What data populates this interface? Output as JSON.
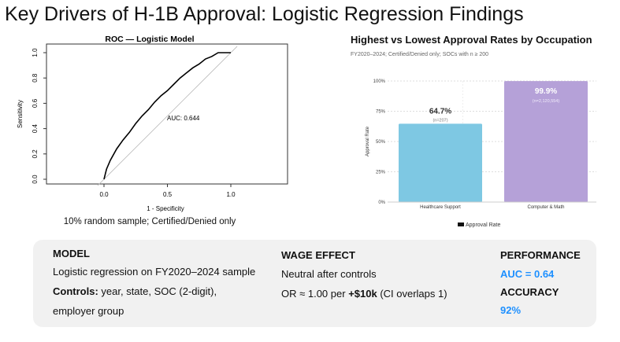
{
  "slide": {
    "title": "Key Drivers of H-1B Approval: Logistic Regression Findings"
  },
  "chart_data": [
    {
      "type": "line",
      "title": "ROC — Logistic Model",
      "xlabel": "1 - Specificity",
      "ylabel": "Sensitivity",
      "xlim": [
        -0.4,
        1.45
      ],
      "ylim": [
        0,
        1
      ],
      "xticks": [
        "0.0",
        "0.5",
        "1.0"
      ],
      "yticks": [
        "0.0",
        "0.2",
        "0.4",
        "0.6",
        "0.8",
        "1.0"
      ],
      "annotation": "AUC: 0.644",
      "caption": "10% random sample; Certified/Denied only",
      "series": [
        {
          "x": [
            0,
            0.02,
            0.05,
            0.1,
            0.15,
            0.2,
            0.25,
            0.3,
            0.35,
            0.4,
            0.45,
            0.5,
            0.55,
            0.6,
            0.65,
            0.7,
            0.75,
            0.8,
            0.85,
            0.9,
            1.0
          ],
          "y": [
            0,
            0.08,
            0.15,
            0.24,
            0.31,
            0.37,
            0.44,
            0.5,
            0.55,
            0.61,
            0.66,
            0.7,
            0.75,
            0.8,
            0.84,
            0.88,
            0.91,
            0.95,
            0.97,
            1.0,
            1.0
          ]
        }
      ],
      "reference_line": "diagonal",
      "colors": {
        "curve": "#000000",
        "reference": "#bbbbbb"
      }
    },
    {
      "type": "bar",
      "title": "Highest vs Lowest Approval Rates by Occupation",
      "subtitle": "FY2020–2024; Certified/Denied only; SOCs with n ≥ 200",
      "categories": [
        "Healthcare Support",
        "Computer & Math"
      ],
      "values": [
        64.7,
        99.9
      ],
      "data_labels": [
        "64.7%",
        "99.9%"
      ],
      "n_labels": [
        "(n=207)",
        "(n=2,120,554)"
      ],
      "colors": [
        "#7ec8e3",
        "#b5a1d8"
      ],
      "ylabel": "Approval Rate",
      "ylim": [
        0,
        100
      ],
      "yticks": [
        "0%",
        "25%",
        "50%",
        "75%",
        "100%"
      ],
      "legend": "Approval Rate",
      "legend_position": "bottom",
      "grid": true
    }
  ],
  "summary": {
    "model": {
      "heading": "MODEL",
      "line1": "Logistic regression on FY2020–2024 sample",
      "controls_label": "Controls:",
      "controls": " year, state, SOC (2-digit),",
      "line3": "employer group"
    },
    "wage": {
      "heading": "WAGE EFFECT",
      "line1": "Neutral after controls",
      "or_pre": "OR ≈ 1.00 per ",
      "or_bold": "+$10k",
      "or_post": " (CI overlaps  1)"
    },
    "performance": {
      "heading": "PERFORMANCE",
      "value": "AUC = 0.64",
      "acc_heading": "ACCURACY",
      "acc_value": "92%"
    }
  }
}
